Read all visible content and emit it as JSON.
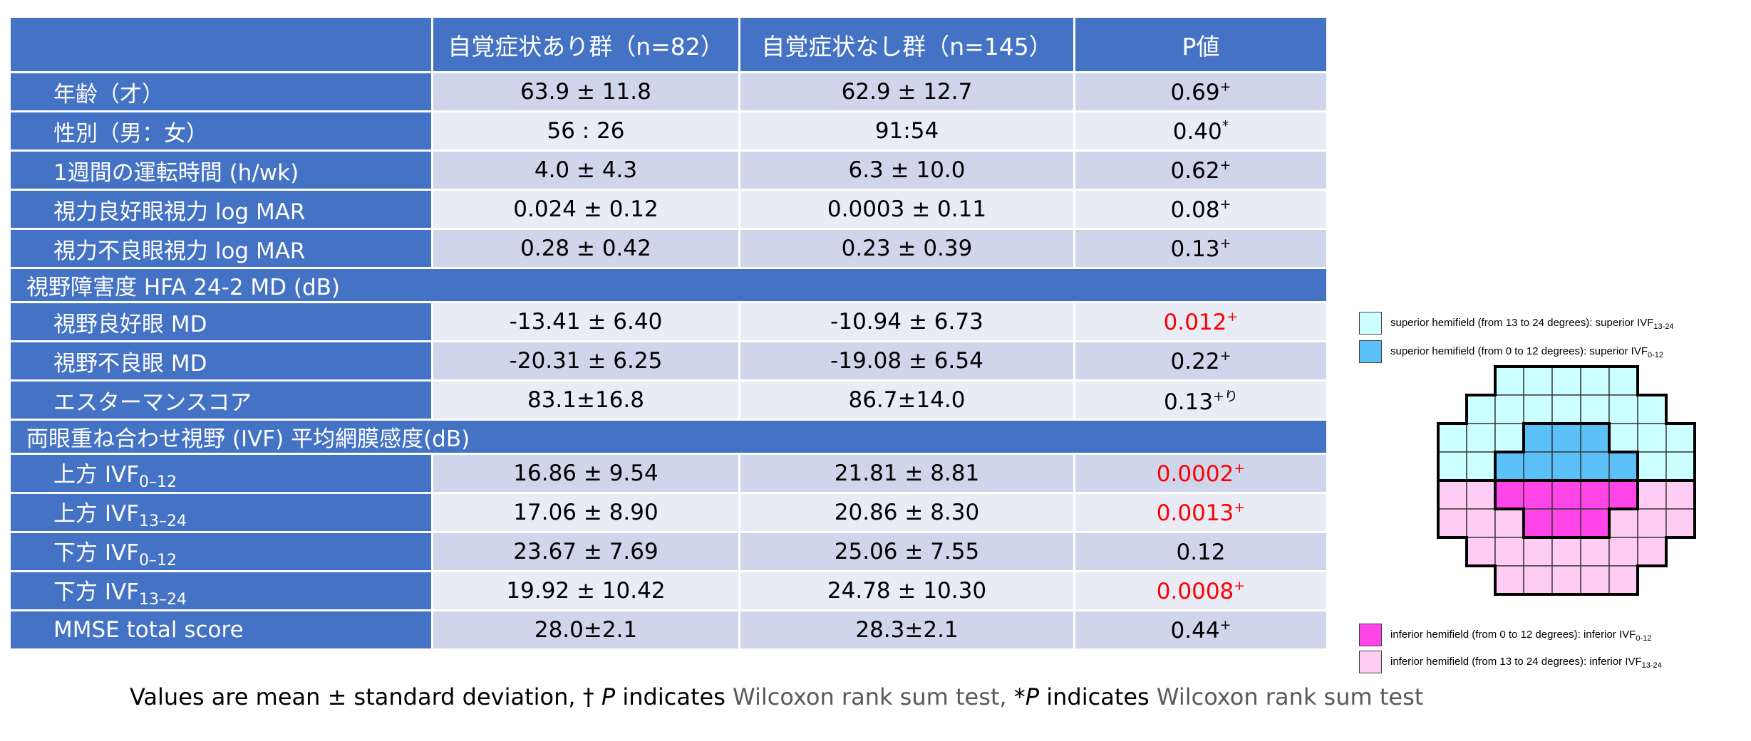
{
  "table": {
    "headers": [
      "",
      "自覚症状あり群（n=82）",
      "自覚症状なし群（n=145）",
      "P値"
    ],
    "rows": [
      {
        "type": "data",
        "label": "年齢（才）",
        "a": "63.9 ± 11.8",
        "b": "62.9 ± 12.7",
        "p": "0.69",
        "mark": "+",
        "red": false
      },
      {
        "type": "data",
        "label": "性別（男：女）",
        "a": "56 : 26",
        "b": "91:54",
        "p": "0.40",
        "mark": "*",
        "red": false
      },
      {
        "type": "data",
        "label": "1週間の運転時間 (h/wk)",
        "a": "4.0 ± 4.3",
        "b": "6.3 ± 10.0",
        "p": "0.62",
        "mark": "+",
        "red": false
      },
      {
        "type": "data",
        "label": "視力良好眼視力 log MAR",
        "a": "0.024 ± 0.12",
        "b": "0.0003 ± 0.11",
        "p": "0.08",
        "mark": "+",
        "red": false
      },
      {
        "type": "data",
        "label": "視力不良眼視力 log MAR",
        "a": "0.28 ± 0.42",
        "b": "0.23 ± 0.39",
        "p": "0.13",
        "mark": "+",
        "red": false
      },
      {
        "type": "section",
        "label": "視野障害度 HFA 24-2 MD (dB)"
      },
      {
        "type": "data",
        "label": "視野良好眼 MD",
        "a": "-13.41 ± 6.40",
        "b": "-10.94 ± 6.73",
        "p": "0.012",
        "mark": "+",
        "red": true
      },
      {
        "type": "data",
        "label": "視野不良眼 MD",
        "a": "-20.31 ± 6.25",
        "b": "-19.08 ± 6.54",
        "p": "0.22",
        "mark": "+",
        "red": false
      },
      {
        "type": "data",
        "label": "エスターマンスコア",
        "a": "83.1±16.8",
        "b": "86.7±14.0",
        "p": "0.13",
        "mark": "+り",
        "red": false
      },
      {
        "type": "section",
        "label": "両眼重ね合わせ視野 (IVF) 平均網膜感度(dB)"
      },
      {
        "type": "data",
        "label": "上方 IVF",
        "sub": "0–12",
        "a": "16.86 ± 9.54",
        "b": "21.81 ± 8.81",
        "p": "0.0002",
        "mark": "+",
        "red": true
      },
      {
        "type": "data",
        "label": "上方 IVF",
        "sub": "13–24",
        "a": "17.06 ± 8.90",
        "b": "20.86 ± 8.30",
        "p": "0.0013",
        "mark": "+",
        "red": true
      },
      {
        "type": "data",
        "label": "下方 IVF",
        "sub": "0–12",
        "a": "23.67 ± 7.69",
        "b": "25.06 ± 7.55",
        "p": "0.12",
        "mark": "",
        "red": false
      },
      {
        "type": "data",
        "label": "下方 IVF",
        "sub": "13–24",
        "a": "19.92 ± 10.42",
        "b": "24.78 ± 10.30",
        "p": "0.0008",
        "mark": "+",
        "red": true
      },
      {
        "type": "data",
        "label": "MMSE total score",
        "a": "28.0±2.1",
        "b": "28.3±2.1",
        "p": "0.44",
        "mark": "+",
        "red": false
      }
    ]
  },
  "footnote": {
    "part1": "Values are mean ± standard deviation, ",
    "dagger": "† ",
    "p1": "P",
    "ind1": " indicates ",
    "test1": "Wilcoxon rank sum test, ",
    "star": "*",
    "p2": "P",
    "ind2": " indicates ",
    "test2": "Wilcoxon rank sum test"
  },
  "legend": [
    {
      "text": "superior hemifield (from 13 to 24 degrees): superior IVF",
      "sub": "13-24",
      "color": "#ccffff"
    },
    {
      "text": "superior hemifield (from 0 to 12 degrees): superior IVF",
      "sub": "0-12",
      "color": "#5bc0f8"
    },
    {
      "text": "inferior hemifield (from 0 to 12 degrees): inferior IVF",
      "sub": "0-12",
      "color": "#ff44e8"
    },
    {
      "text": "inferior hemifield (from 13 to 24 degrees): inferior IVF",
      "sub": "13-24",
      "color": "#ffccf4"
    }
  ],
  "colors": {
    "header_blue": "#4472c4",
    "row_odd": "#cfd5ea",
    "row_even": "#e9ebf5",
    "significant": "#ff0000"
  }
}
